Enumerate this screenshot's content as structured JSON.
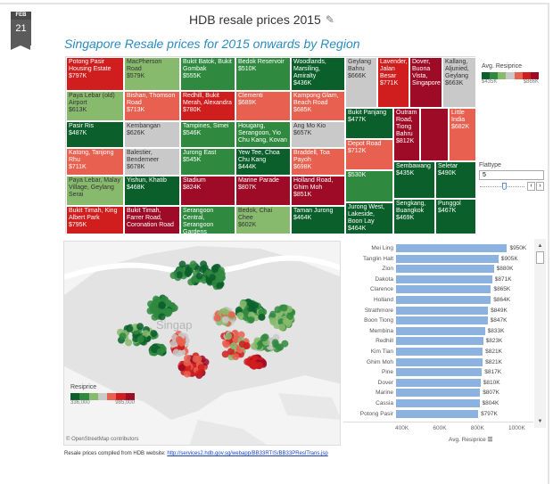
{
  "date_badge": {
    "month": "FEB",
    "day": "21"
  },
  "post_title": "HDB resale prices 2015",
  "edit_icon": "pencil-icon",
  "viz_title": "Singapore Resale prices for 2015 onwards by Region",
  "colors": {
    "dark_green": "#0b5f2b",
    "green": "#2f8a3f",
    "light_green": "#88ba6e",
    "gray": "#c9c9c9",
    "salmon": "#e8604f",
    "red": "#d01d1d",
    "dark_red": "#9e0b27",
    "bar": "#8cb3e0",
    "title_blue": "#2b8bbf"
  },
  "treemap": {
    "tiles": [
      {
        "name": "Potong Pasir Housing Estate",
        "value": "$797K",
        "color": "red"
      },
      {
        "name": "MacPherson Road",
        "value": "$579K",
        "color": "light_green"
      },
      {
        "name": "Bukit Batok, Bukit Gombak",
        "value": "$555K",
        "color": "green"
      },
      {
        "name": "Bedok Reservoir",
        "value": "$510K",
        "color": "green"
      },
      {
        "name": "Woodlands, Marsiling, Amiralty",
        "value": "$436K",
        "color": "dark_green"
      },
      {
        "name": "Paya Lebar (old) Airport",
        "value": "$613K",
        "color": "light_green"
      },
      {
        "name": "Bishan, Thomson Road",
        "value": "$713K",
        "color": "salmon"
      },
      {
        "name": "Redhill, Bukit Merah, Alexandra",
        "value": "$780K",
        "color": "red"
      },
      {
        "name": "Clementi",
        "value": "$689K",
        "color": "salmon"
      },
      {
        "name": "Kampong Glam, Beach Road",
        "value": "$685K",
        "color": "salmon"
      },
      {
        "name": "Pasir Ris",
        "value": "$487K",
        "color": "dark_green"
      },
      {
        "name": "Kembangan",
        "value": "$626K",
        "color": "gray"
      },
      {
        "name": "Tampines, Simei",
        "value": "$546K",
        "color": "green"
      },
      {
        "name": "Hougang, Serangoon, Yio Chu Kang, Kovan",
        "value": "",
        "color": "green"
      },
      {
        "name": "Ang Mo Kio",
        "value": "$657K",
        "color": "gray"
      },
      {
        "name": "Katong, Tanjong Rhu",
        "value": "$711K",
        "color": "salmon"
      },
      {
        "name": "Balestier, Bendemeer",
        "value": "$678K",
        "color": "gray"
      },
      {
        "name": "Jurong East",
        "value": "$545K",
        "color": "green"
      },
      {
        "name": "Yew Tee, Choa Chu Kang",
        "value": "$444K",
        "color": "dark_green"
      },
      {
        "name": "Braddell, Toa Payoh",
        "value": "$698K",
        "color": "salmon"
      },
      {
        "name": "Paya Lebar, Malay Village, Geylang Serai",
        "value": "",
        "color": "light_green"
      },
      {
        "name": "Yishun, Khatib",
        "value": "$468K",
        "color": "dark_green"
      },
      {
        "name": "Stadium",
        "value": "$824K",
        "color": "dark_red"
      },
      {
        "name": "Marine Parade",
        "value": "$807K",
        "color": "dark_red"
      },
      {
        "name": "Holland Road, Ghim Moh",
        "value": "$851K",
        "color": "dark_red"
      },
      {
        "name": "Bukit Timah, King Albert Park",
        "value": "$795K",
        "color": "red"
      },
      {
        "name": "Bukit Timah, Farrer Road, Coronation Road",
        "value": "",
        "color": "dark_red"
      },
      {
        "name": "Serangoon Central, Serangoon Gardens",
        "value": "",
        "color": "green"
      },
      {
        "name": "Bedok, Chai Chee",
        "value": "$602K",
        "color": "light_green"
      },
      {
        "name": "Taman Jurong",
        "value": "$464K",
        "color": "dark_green"
      },
      {
        "name": "Geylang Bahru",
        "value": "$666K",
        "color": "gray"
      },
      {
        "name": "Lavender, Jalan Besar",
        "value": "$771K",
        "color": "red"
      },
      {
        "name": "Dover, Buona Vista, Singapore",
        "value": "",
        "color": "dark_red"
      },
      {
        "name": "Kallang, Aljunied, Geylang",
        "value": "$663K",
        "color": "gray"
      },
      {
        "name": "Bukit Panjang",
        "value": "$477K",
        "color": "dark_green"
      },
      {
        "name": "Depot Road",
        "value": "$712K",
        "color": "salmon"
      },
      {
        "name": "",
        "value": "$530K",
        "color": "green"
      },
      {
        "name": "Jurong West, Lakeside, Boon Lay",
        "value": "$464K",
        "color": "dark_green"
      },
      {
        "name": "Outram Road, Tiong Bahru",
        "value": "$812K",
        "color": "dark_red"
      },
      {
        "name": "",
        "value": "",
        "color": "dark_red"
      },
      {
        "name": "Little India",
        "value": "$682K",
        "color": "salmon"
      },
      {
        "name": "Sembawang",
        "value": "$435K",
        "color": "dark_green"
      },
      {
        "name": "Seletar",
        "value": "$490K",
        "color": "dark_green"
      },
      {
        "name": "Sengkang, Buangkok",
        "value": "$469K",
        "color": "dark_green"
      },
      {
        "name": "Punggol",
        "value": "$467K",
        "color": "dark_green"
      }
    ]
  },
  "treemap_legend": {
    "title": "Avg. Resiprice",
    "min": "$435K",
    "max": "$866K"
  },
  "flat_type_filter": {
    "label": "Flattype",
    "value": "5",
    "prev_icon": "chevron-left-icon",
    "next_icon": "chevron-right-icon"
  },
  "map": {
    "place_label": "Singap",
    "legend_title": "Resiprice",
    "legend_min": "336,000",
    "legend_max": "985,000",
    "attribution": "© OpenStreetMap contributors"
  },
  "chart_data": {
    "type": "bar",
    "orientation": "horizontal",
    "categories": [
      "Mei Ling",
      "Tanglin Halt",
      "Zion",
      "Dakota",
      "Clarence",
      "Holland",
      "Strathmore",
      "Boon Tiong",
      "Membina",
      "Redhill",
      "Kim Tian",
      "Ghim Moh",
      "Pine",
      "Dover",
      "Marine",
      "Cassia",
      "Potong Pasir"
    ],
    "values": [
      950,
      905,
      880,
      871,
      865,
      864,
      849,
      847,
      833,
      823,
      821,
      821,
      817,
      810,
      807,
      804,
      797
    ],
    "labels": [
      "$950K",
      "$905K",
      "$880K",
      "$871K",
      "$865K",
      "$864K",
      "$849K",
      "$847K",
      "$833K",
      "$823K",
      "$821K",
      "$821K",
      "$817K",
      "$810K",
      "$807K",
      "$804K",
      "$797K"
    ],
    "xlabel": "Avg. Resiprice",
    "xticks": [
      "400K",
      "600K",
      "800K",
      "1000K"
    ],
    "xtick_values": [
      400,
      600,
      800,
      1000
    ],
    "xlim": [
      362,
      1050
    ],
    "grid": false
  },
  "footer": {
    "text": "Resale prices compiled from HDB website: ",
    "link": "http://services2.hdb.gov.sg/webapp/BB33RTIS/BB33PReslTrans.jsp"
  }
}
